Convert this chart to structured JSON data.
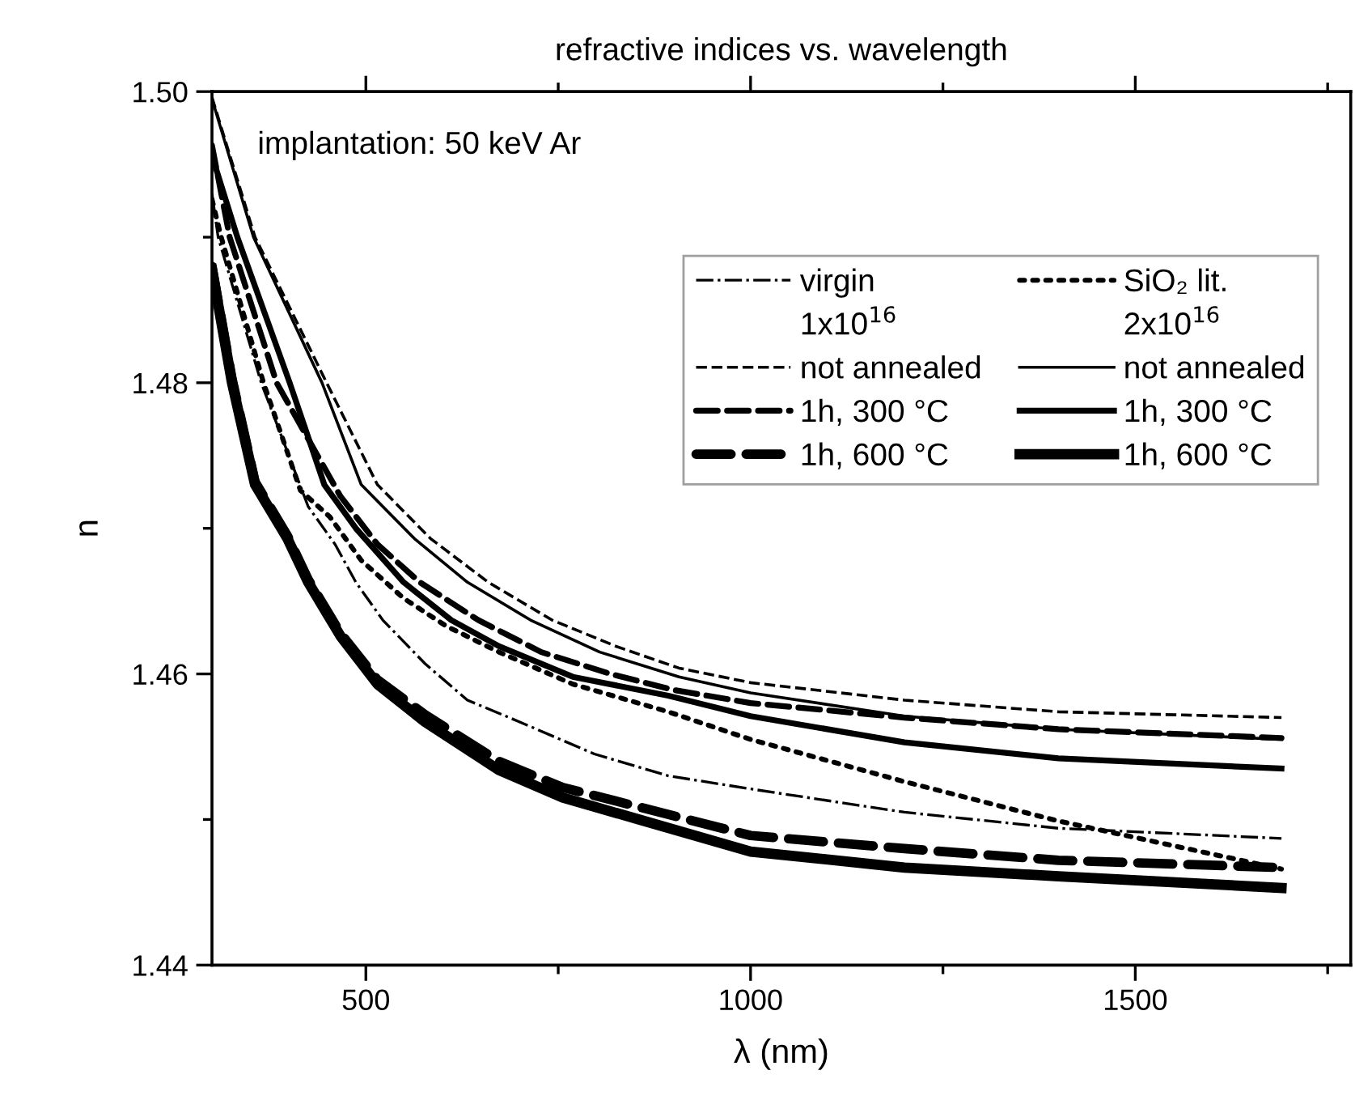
{
  "chart_data": {
    "type": "line",
    "title": "refractive indices vs. wavelength",
    "xlabel": "λ (nm)",
    "ylabel": "n",
    "annotations": [
      "implantation: 50 keV Ar",
      "1x10$^{16}$",
      "2x10$^{16}$"
    ],
    "xlim": [
      300,
      1780
    ],
    "ylim": [
      1.44,
      1.5
    ],
    "xticks": [
      500,
      {
        "value": 750,
        "label": null
      },
      1000,
      {
        "value": 1250,
        "label": null
      },
      1500,
      {
        "value": 1750,
        "label": null
      }
    ],
    "yticks": [
      1.44,
      {
        "value": 1.45,
        "label": null
      },
      1.46,
      {
        "value": 1.47,
        "label": null
      },
      1.48,
      {
        "value": 1.49,
        "label": null
      },
      {
        "value": 1.5,
        "label": "1.50"
      }
    ],
    "legend": "top right",
    "grid": false,
    "marker": "none",
    "series": [
      {
        "name": "virgin",
        "color": "#000000",
        "line_style": "dashdot",
        "x": [
          300,
          308,
          364,
          425,
          460,
          487,
          522,
          577,
          632,
          700,
          797,
          893,
          1000,
          1200,
          1400,
          1690
        ],
        "values": [
          1.493,
          1.49,
          1.48,
          1.4715,
          1.4689,
          1.4663,
          1.4637,
          1.4607,
          1.4582,
          1.4567,
          1.4545,
          1.453,
          1.4521,
          1.4505,
          1.4494,
          1.4487
        ]
      },
      {
        "name": "SiO₂ lit.",
        "color": "#000000",
        "line_style": "dotted",
        "x": [
          300,
          312,
          367,
          415,
          453,
          494,
          549,
          604,
          673,
          769,
          893,
          1000,
          1200,
          1400,
          1690
        ],
        "values": [
          1.4926,
          1.49,
          1.48,
          1.4726,
          1.4708,
          1.4678,
          1.4652,
          1.4633,
          1.4615,
          1.4593,
          1.4574,
          1.4555,
          1.4526,
          1.4499,
          1.4466
        ]
      },
      {
        "name": "not annealed",
        "color": "#000000",
        "line_style": "dashed",
        "x": [
          300,
          356,
          449,
          515,
          584,
          659,
          742,
          825,
          907,
          1000,
          1200,
          1400,
          1690
        ],
        "values": [
          1.4996,
          1.49,
          1.48,
          1.473,
          1.4693,
          1.4663,
          1.4637,
          1.4619,
          1.4604,
          1.4594,
          1.4582,
          1.4574,
          1.457
        ]
      },
      {
        "name": "not annealed",
        "color": "#000000",
        "line_style": "solid",
        "x": [
          300,
          354,
          443,
          494,
          563,
          632,
          714,
          804,
          907,
          1000,
          1200,
          1400,
          1690
        ],
        "values": [
          1.4995,
          1.49,
          1.48,
          1.473,
          1.4693,
          1.4663,
          1.4637,
          1.4615,
          1.4598,
          1.4587,
          1.4571,
          1.4562,
          1.4555
        ]
      },
      {
        "name": "1h, 300 °C",
        "color": "#000000",
        "line_style": "dashed",
        "x": [
          300,
          323,
          384,
          467,
          515,
          570,
          646,
          728,
          818,
          900,
          1000,
          1200,
          1400,
          1690
        ],
        "values": [
          1.4963,
          1.49,
          1.48,
          1.4722,
          1.4689,
          1.4663,
          1.4637,
          1.4615,
          1.46,
          1.4589,
          1.458,
          1.457,
          1.4562,
          1.4556
        ]
      },
      {
        "name": "1h, 300 °C",
        "color": "#000000",
        "line_style": "solid",
        "x": [
          300,
          333,
          401,
          446,
          487,
          549,
          611,
          673,
          769,
          893,
          1000,
          1200,
          1400,
          1690
        ],
        "values": [
          1.4956,
          1.49,
          1.48,
          1.473,
          1.47,
          1.4663,
          1.4637,
          1.4619,
          1.4598,
          1.4585,
          1.4571,
          1.4553,
          1.4542,
          1.4535
        ]
      },
      {
        "name": "1h, 600 °C",
        "color": "#000000",
        "line_style": "dashed",
        "x": [
          300,
          326,
          356,
          398,
          425,
          467,
          515,
          577,
          673,
          756,
          1000,
          1200,
          1400,
          1690
        ],
        "values": [
          1.488,
          1.4803,
          1.4732,
          1.4695,
          1.4665,
          1.4628,
          1.4596,
          1.4572,
          1.454,
          1.4522,
          1.4489,
          1.448,
          1.4472,
          1.4467
        ]
      },
      {
        "name": "1h, 600 °C",
        "color": "#000000",
        "line_style": "solid",
        "x": [
          300,
          326,
          356,
          398,
          425,
          467,
          515,
          577,
          673,
          756,
          1000,
          1200,
          1400,
          1690
        ],
        "values": [
          1.4878,
          1.48,
          1.473,
          1.4693,
          1.4663,
          1.4626,
          1.4593,
          1.4567,
          1.4534,
          1.4515,
          1.4478,
          1.4467,
          1.4461,
          1.4453
        ]
      }
    ]
  }
}
